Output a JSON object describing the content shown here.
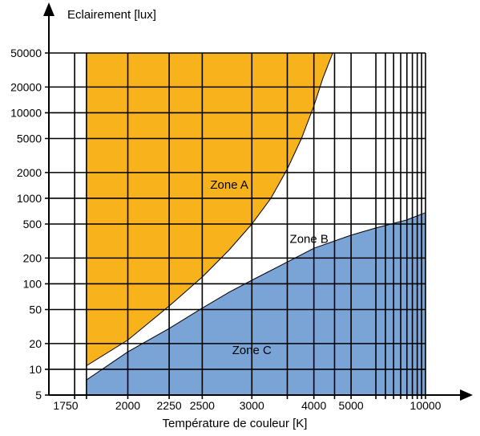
{
  "chart_data": {
    "type": "area",
    "xlabel": "Température de couleur [K]",
    "ylabel": "Eclairement [lux]",
    "x_scale": "reciprocal",
    "y_scale": "log",
    "xlim": [
      1650,
      10000
    ],
    "ylim": [
      5,
      50000
    ],
    "grid": true,
    "x_ticks": [
      {
        "value": 1750,
        "label": "1750"
      },
      {
        "value": 2000,
        "label": "2000"
      },
      {
        "value": 2250,
        "label": "2250"
      },
      {
        "value": 2500,
        "label": "2500"
      },
      {
        "value": 3000,
        "label": "3000"
      },
      {
        "value": 4000,
        "label": "4000"
      },
      {
        "value": 5000,
        "label": "5000"
      },
      {
        "value": 10000,
        "label": "10000"
      }
    ],
    "x_minor_gridlines": [
      1800,
      3500,
      4500,
      6000,
      6500,
      7000,
      7500,
      8000,
      8500,
      9000,
      9500
    ],
    "y_ticks": [
      {
        "value": 5,
        "label": "5"
      },
      {
        "value": 10,
        "label": "10"
      },
      {
        "value": 20,
        "label": "20"
      },
      {
        "value": 50,
        "label": "50"
      },
      {
        "value": 100,
        "label": "100"
      },
      {
        "value": 200,
        "label": "200"
      },
      {
        "value": 500,
        "label": "500"
      },
      {
        "value": 1000,
        "label": "1000"
      },
      {
        "value": 2000,
        "label": "2000"
      },
      {
        "value": 5000,
        "label": "5000"
      },
      {
        "value": 10000,
        "label": "10000"
      },
      {
        "value": 20000,
        "label": "20000"
      },
      {
        "value": 50000,
        "label": "50000"
      }
    ],
    "series": [
      {
        "name": "Zone A",
        "color": "#f7b21c",
        "upper_x": [
          4450,
          1800
        ],
        "upper_y": [
          50000,
          50000
        ],
        "boundary_x": [
          1800,
          2000,
          2250,
          2500,
          2750,
          3000,
          3250,
          3500,
          3750,
          4000,
          4200,
          4450
        ],
        "boundary_y": [
          11,
          22,
          55,
          120,
          250,
          500,
          1000,
          2200,
          5000,
          12000,
          25000,
          50000
        ]
      },
      {
        "name": "Zone B",
        "color": "#ffffff",
        "note_region": "between Zone A and Zone C"
      },
      {
        "name": "Zone C",
        "color": "#7aa3d6",
        "boundary_x": [
          1800,
          2000,
          2250,
          2500,
          2750,
          3000,
          3500,
          4000,
          5000,
          6000,
          7000,
          8000,
          10000
        ],
        "boundary_y": [
          7.5,
          16,
          30,
          52,
          80,
          110,
          180,
          260,
          370,
          450,
          510,
          560,
          680
        ],
        "lower_y": 5
      }
    ],
    "zone_labels": [
      {
        "text": "Zone A",
        "x": 2750,
        "y": 1300
      },
      {
        "text": "Zone B",
        "x": 3900,
        "y": 300
      },
      {
        "text": "Zone C",
        "x": 3000,
        "y": 15
      }
    ]
  }
}
